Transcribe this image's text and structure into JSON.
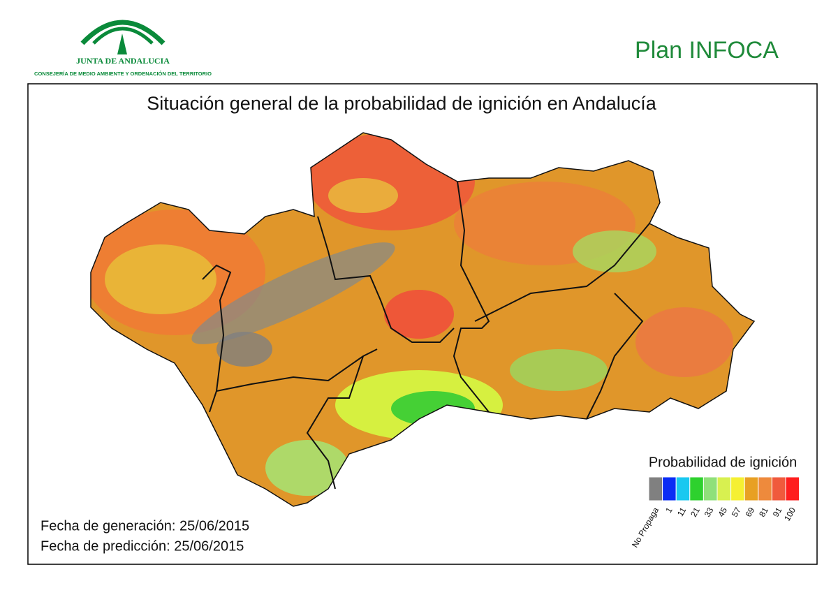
{
  "header": {
    "logo_name": "JUNTA DE ANDALUCIA",
    "logo_subtitle": "CONSEJERÍA DE MEDIO AMBIENTE Y ORDENACIÓN DEL TERRITORIO",
    "plan": "Plan INFOCA"
  },
  "map": {
    "title": "Situación general de la probabilidad de ignición en Andalucía",
    "legend": {
      "title": "Probabilidad de ignición",
      "items": [
        {
          "label": "No Propaga",
          "color": "#808080"
        },
        {
          "label": "1",
          "color": "#0a2cf5"
        },
        {
          "label": "11",
          "color": "#19c8f0"
        },
        {
          "label": "21",
          "color": "#2ed12e"
        },
        {
          "label": "33",
          "color": "#8fe07a"
        },
        {
          "label": "45",
          "color": "#d8f050"
        },
        {
          "label": "57",
          "color": "#f5f032"
        },
        {
          "label": "69",
          "color": "#e8a023"
        },
        {
          "label": "81",
          "color": "#ee8a3c"
        },
        {
          "label": "91",
          "color": "#f05a3c"
        },
        {
          "label": "100",
          "color": "#ff1e1e"
        }
      ]
    },
    "generation": "Fecha de generación: 25/06/2015",
    "prediction": "Fecha de predicción: 25/06/2015"
  }
}
